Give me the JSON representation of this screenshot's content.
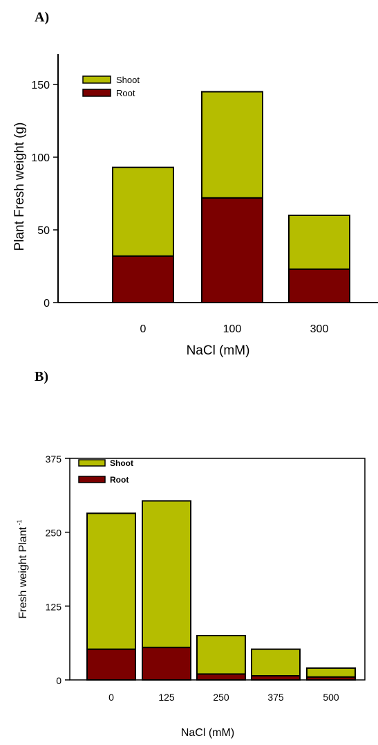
{
  "panels": {
    "a_label": "A)",
    "b_label": "B)"
  },
  "colors": {
    "shoot": "#b5bd00",
    "root": "#7b0000",
    "stroke": "#000000"
  },
  "chart_data": [
    {
      "type": "bar",
      "stacked": true,
      "categories": [
        "0",
        "100",
        "300"
      ],
      "series": [
        {
          "name": "Root",
          "values": [
            32,
            72,
            23
          ]
        },
        {
          "name": "Shoot",
          "values": [
            61,
            73,
            37
          ]
        }
      ],
      "totals": [
        93,
        145,
        60
      ],
      "xlabel": "NaCl (mM)",
      "ylabel": "Plant Fresh weight (g)",
      "ylim": [
        0,
        150
      ],
      "yticks": [
        "0",
        "50",
        "100",
        "150"
      ],
      "legend": [
        "Shoot",
        "Root"
      ],
      "legend_position": "top-left",
      "grid": false
    },
    {
      "type": "bar",
      "stacked": true,
      "categories": [
        "0",
        "125",
        "250",
        "375",
        "500"
      ],
      "series": [
        {
          "name": "Root",
          "values": [
            52,
            55,
            10,
            7,
            5
          ]
        },
        {
          "name": "Shoot",
          "values": [
            230,
            248,
            65,
            45,
            15
          ]
        }
      ],
      "totals": [
        282,
        303,
        75,
        52,
        20
      ],
      "xlabel": "NaCl (mM)",
      "ylabel": "Fresh weight Plant",
      "ylabel_superscript": "-1",
      "ylim": [
        0,
        375
      ],
      "yticks": [
        "0",
        "125",
        "250",
        "375"
      ],
      "legend": [
        "Shoot",
        "Root"
      ],
      "legend_position": "top-left",
      "grid": false
    }
  ]
}
